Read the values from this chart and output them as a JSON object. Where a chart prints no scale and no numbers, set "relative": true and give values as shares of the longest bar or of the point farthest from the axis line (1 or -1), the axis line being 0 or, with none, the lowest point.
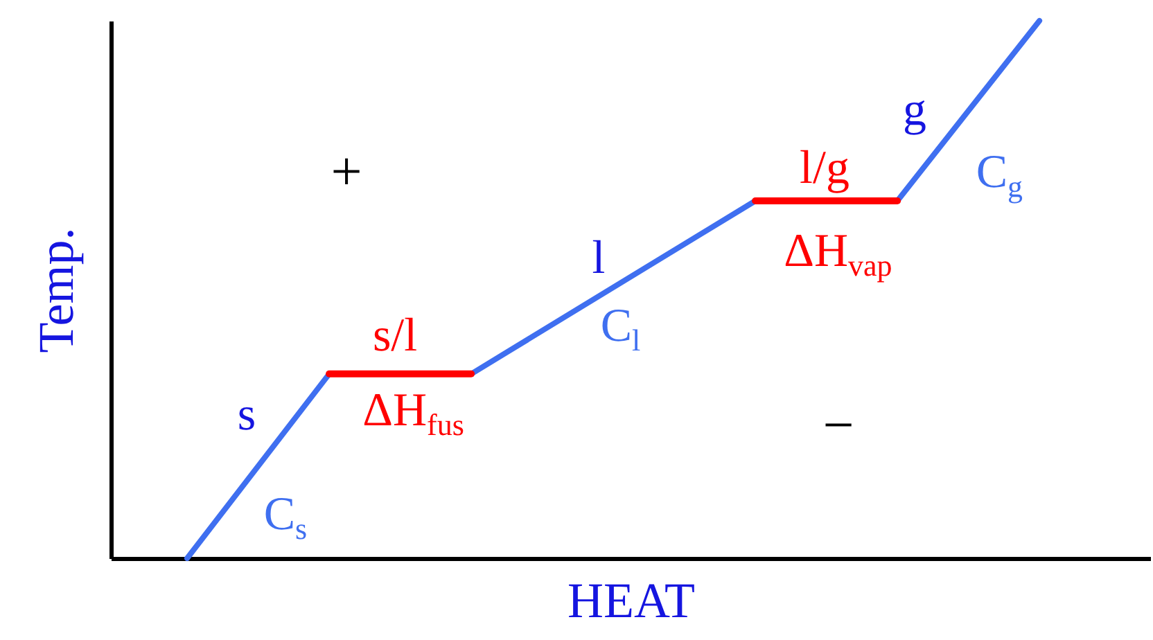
{
  "chart_data": {
    "type": "line",
    "relative": true,
    "xlabel": "HEAT",
    "ylabel": "Temp.",
    "categories": [
      null,
      null,
      null,
      null,
      null,
      null,
      null
    ],
    "series": [
      {
        "color": "#3f6ff0",
        "values": [
          0,
          0.343,
          0.343,
          0.504,
          0.665,
          0.665,
          1
        ]
      },
      {
        "color": "#ff0000",
        "values": [
          null,
          0.343,
          0.343,
          null,
          null,
          null,
          null
        ]
      },
      {
        "color": "#ff0000",
        "values": [
          null,
          null,
          null,
          null,
          0.665,
          0.665,
          null
        ]
      }
    ],
    "annotations": [
      "+",
      "−",
      "s",
      "C$_{s}$",
      "s/l",
      "ΔH$_{fus}$",
      "l",
      "C$_{l}$",
      "l/g",
      "ΔH$_{vap}$",
      "g",
      "C$_{g}$"
    ],
    "tick_labels": false,
    "grid": false,
    "line_style": "solid",
    "marker": "none"
  }
}
